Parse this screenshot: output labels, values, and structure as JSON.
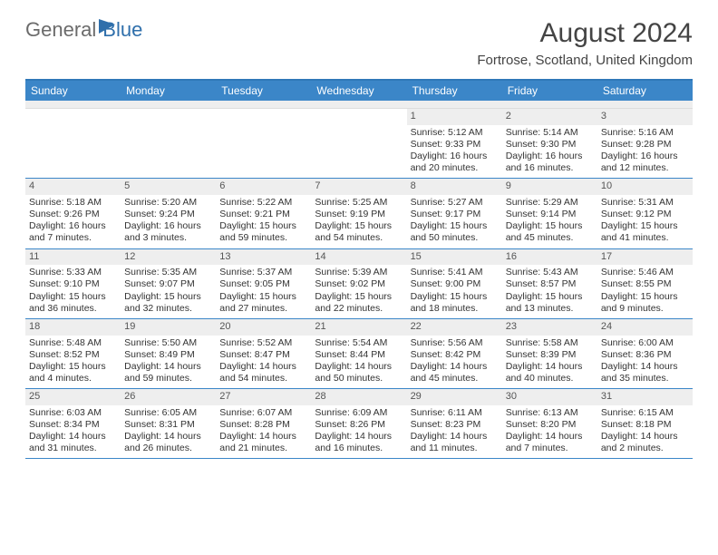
{
  "brand": {
    "part1": "General",
    "part2": "Blue"
  },
  "title": "August 2024",
  "location": "Fortrose, Scotland, United Kingdom",
  "colors": {
    "header_bar": "#3b86c8",
    "brand_blue": "#2f6fab",
    "grey_text": "#6b6b6b",
    "daynum_bg": "#eeeeee",
    "rule": "#3b86c8"
  },
  "days_of_week": [
    "Sunday",
    "Monday",
    "Tuesday",
    "Wednesday",
    "Thursday",
    "Friday",
    "Saturday"
  ],
  "weeks": [
    [
      {
        "n": "",
        "sr": "",
        "ss": "",
        "dl": ""
      },
      {
        "n": "",
        "sr": "",
        "ss": "",
        "dl": ""
      },
      {
        "n": "",
        "sr": "",
        "ss": "",
        "dl": ""
      },
      {
        "n": "",
        "sr": "",
        "ss": "",
        "dl": ""
      },
      {
        "n": "1",
        "sr": "Sunrise: 5:12 AM",
        "ss": "Sunset: 9:33 PM",
        "dl": "Daylight: 16 hours and 20 minutes."
      },
      {
        "n": "2",
        "sr": "Sunrise: 5:14 AM",
        "ss": "Sunset: 9:30 PM",
        "dl": "Daylight: 16 hours and 16 minutes."
      },
      {
        "n": "3",
        "sr": "Sunrise: 5:16 AM",
        "ss": "Sunset: 9:28 PM",
        "dl": "Daylight: 16 hours and 12 minutes."
      }
    ],
    [
      {
        "n": "4",
        "sr": "Sunrise: 5:18 AM",
        "ss": "Sunset: 9:26 PM",
        "dl": "Daylight: 16 hours and 7 minutes."
      },
      {
        "n": "5",
        "sr": "Sunrise: 5:20 AM",
        "ss": "Sunset: 9:24 PM",
        "dl": "Daylight: 16 hours and 3 minutes."
      },
      {
        "n": "6",
        "sr": "Sunrise: 5:22 AM",
        "ss": "Sunset: 9:21 PM",
        "dl": "Daylight: 15 hours and 59 minutes."
      },
      {
        "n": "7",
        "sr": "Sunrise: 5:25 AM",
        "ss": "Sunset: 9:19 PM",
        "dl": "Daylight: 15 hours and 54 minutes."
      },
      {
        "n": "8",
        "sr": "Sunrise: 5:27 AM",
        "ss": "Sunset: 9:17 PM",
        "dl": "Daylight: 15 hours and 50 minutes."
      },
      {
        "n": "9",
        "sr": "Sunrise: 5:29 AM",
        "ss": "Sunset: 9:14 PM",
        "dl": "Daylight: 15 hours and 45 minutes."
      },
      {
        "n": "10",
        "sr": "Sunrise: 5:31 AM",
        "ss": "Sunset: 9:12 PM",
        "dl": "Daylight: 15 hours and 41 minutes."
      }
    ],
    [
      {
        "n": "11",
        "sr": "Sunrise: 5:33 AM",
        "ss": "Sunset: 9:10 PM",
        "dl": "Daylight: 15 hours and 36 minutes."
      },
      {
        "n": "12",
        "sr": "Sunrise: 5:35 AM",
        "ss": "Sunset: 9:07 PM",
        "dl": "Daylight: 15 hours and 32 minutes."
      },
      {
        "n": "13",
        "sr": "Sunrise: 5:37 AM",
        "ss": "Sunset: 9:05 PM",
        "dl": "Daylight: 15 hours and 27 minutes."
      },
      {
        "n": "14",
        "sr": "Sunrise: 5:39 AM",
        "ss": "Sunset: 9:02 PM",
        "dl": "Daylight: 15 hours and 22 minutes."
      },
      {
        "n": "15",
        "sr": "Sunrise: 5:41 AM",
        "ss": "Sunset: 9:00 PM",
        "dl": "Daylight: 15 hours and 18 minutes."
      },
      {
        "n": "16",
        "sr": "Sunrise: 5:43 AM",
        "ss": "Sunset: 8:57 PM",
        "dl": "Daylight: 15 hours and 13 minutes."
      },
      {
        "n": "17",
        "sr": "Sunrise: 5:46 AM",
        "ss": "Sunset: 8:55 PM",
        "dl": "Daylight: 15 hours and 9 minutes."
      }
    ],
    [
      {
        "n": "18",
        "sr": "Sunrise: 5:48 AM",
        "ss": "Sunset: 8:52 PM",
        "dl": "Daylight: 15 hours and 4 minutes."
      },
      {
        "n": "19",
        "sr": "Sunrise: 5:50 AM",
        "ss": "Sunset: 8:49 PM",
        "dl": "Daylight: 14 hours and 59 minutes."
      },
      {
        "n": "20",
        "sr": "Sunrise: 5:52 AM",
        "ss": "Sunset: 8:47 PM",
        "dl": "Daylight: 14 hours and 54 minutes."
      },
      {
        "n": "21",
        "sr": "Sunrise: 5:54 AM",
        "ss": "Sunset: 8:44 PM",
        "dl": "Daylight: 14 hours and 50 minutes."
      },
      {
        "n": "22",
        "sr": "Sunrise: 5:56 AM",
        "ss": "Sunset: 8:42 PM",
        "dl": "Daylight: 14 hours and 45 minutes."
      },
      {
        "n": "23",
        "sr": "Sunrise: 5:58 AM",
        "ss": "Sunset: 8:39 PM",
        "dl": "Daylight: 14 hours and 40 minutes."
      },
      {
        "n": "24",
        "sr": "Sunrise: 6:00 AM",
        "ss": "Sunset: 8:36 PM",
        "dl": "Daylight: 14 hours and 35 minutes."
      }
    ],
    [
      {
        "n": "25",
        "sr": "Sunrise: 6:03 AM",
        "ss": "Sunset: 8:34 PM",
        "dl": "Daylight: 14 hours and 31 minutes."
      },
      {
        "n": "26",
        "sr": "Sunrise: 6:05 AM",
        "ss": "Sunset: 8:31 PM",
        "dl": "Daylight: 14 hours and 26 minutes."
      },
      {
        "n": "27",
        "sr": "Sunrise: 6:07 AM",
        "ss": "Sunset: 8:28 PM",
        "dl": "Daylight: 14 hours and 21 minutes."
      },
      {
        "n": "28",
        "sr": "Sunrise: 6:09 AM",
        "ss": "Sunset: 8:26 PM",
        "dl": "Daylight: 14 hours and 16 minutes."
      },
      {
        "n": "29",
        "sr": "Sunrise: 6:11 AM",
        "ss": "Sunset: 8:23 PM",
        "dl": "Daylight: 14 hours and 11 minutes."
      },
      {
        "n": "30",
        "sr": "Sunrise: 6:13 AM",
        "ss": "Sunset: 8:20 PM",
        "dl": "Daylight: 14 hours and 7 minutes."
      },
      {
        "n": "31",
        "sr": "Sunrise: 6:15 AM",
        "ss": "Sunset: 8:18 PM",
        "dl": "Daylight: 14 hours and 2 minutes."
      }
    ]
  ]
}
